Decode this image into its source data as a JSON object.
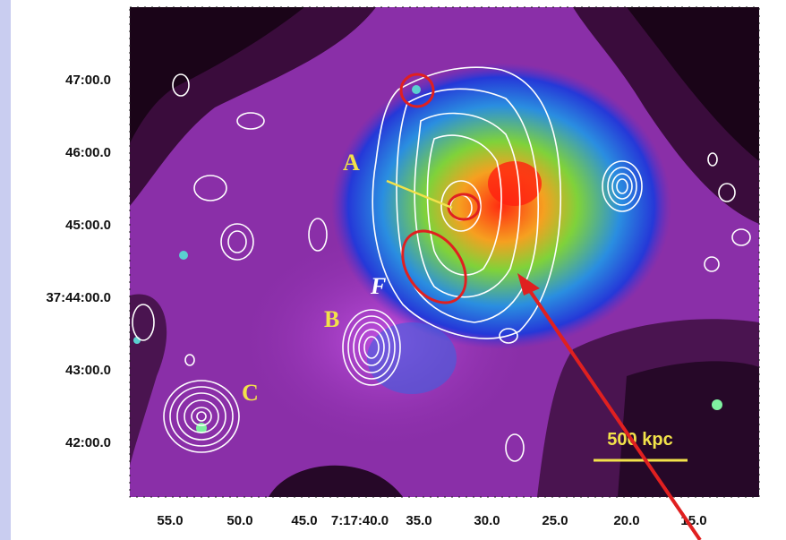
{
  "figure": {
    "y_axis_labels": [
      "47:00.0",
      "46:00.0",
      "45:00.0",
      "37:44:00.0",
      "43:00.0",
      "42:00.0"
    ],
    "x_axis_labels": [
      "55.0",
      "50.0",
      "45.0",
      "7:17:40.0",
      "35.0",
      "30.0",
      "25.0",
      "20.0",
      "15.0"
    ],
    "annotations": {
      "A": "A",
      "B": "B",
      "C": "C",
      "F": "F"
    },
    "scale_bar": "500 kpc"
  }
}
